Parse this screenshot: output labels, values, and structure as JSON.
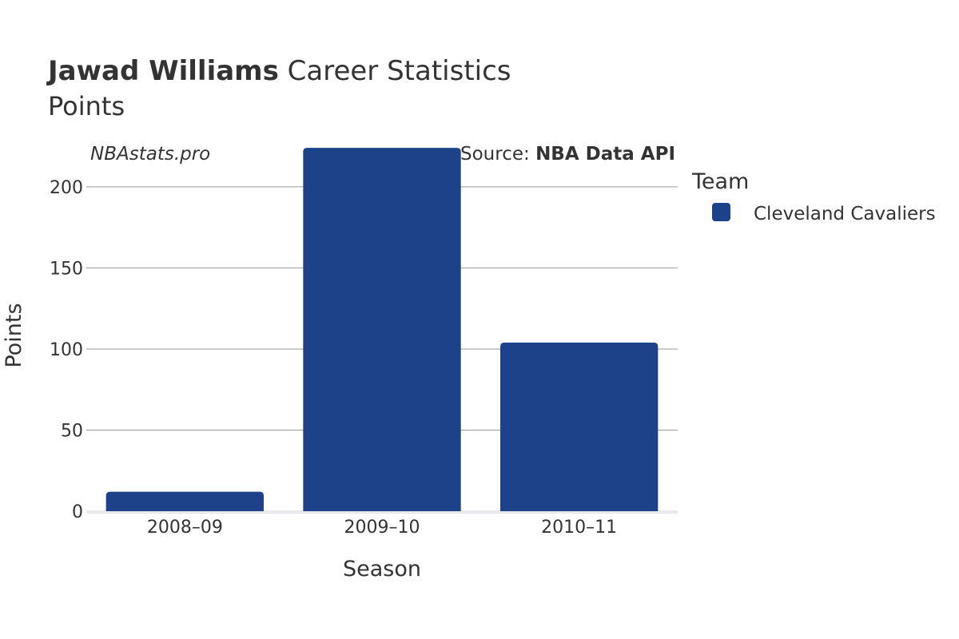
{
  "title": {
    "player": "Jawad Williams",
    "rest": " Career Statistics"
  },
  "subtitle": "Points",
  "watermark": "NBAstats.pro",
  "source": {
    "prefix": "Source: ",
    "name": "NBA Data API"
  },
  "legend": {
    "title": "Team"
  },
  "colors": {
    "bar": "#1d4289"
  },
  "chart_data": {
    "type": "bar",
    "categories": [
      "2008–09",
      "2009–10",
      "2010–11"
    ],
    "series": [
      {
        "name": "Cleveland Cavaliers",
        "values": [
          12,
          224,
          104
        ]
      }
    ],
    "xlabel": "Season",
    "ylabel": "Points",
    "ylim": [
      0,
      230
    ],
    "yticks": [
      0,
      50,
      100,
      150,
      200
    ],
    "grid": true,
    "legend_position": "right"
  }
}
